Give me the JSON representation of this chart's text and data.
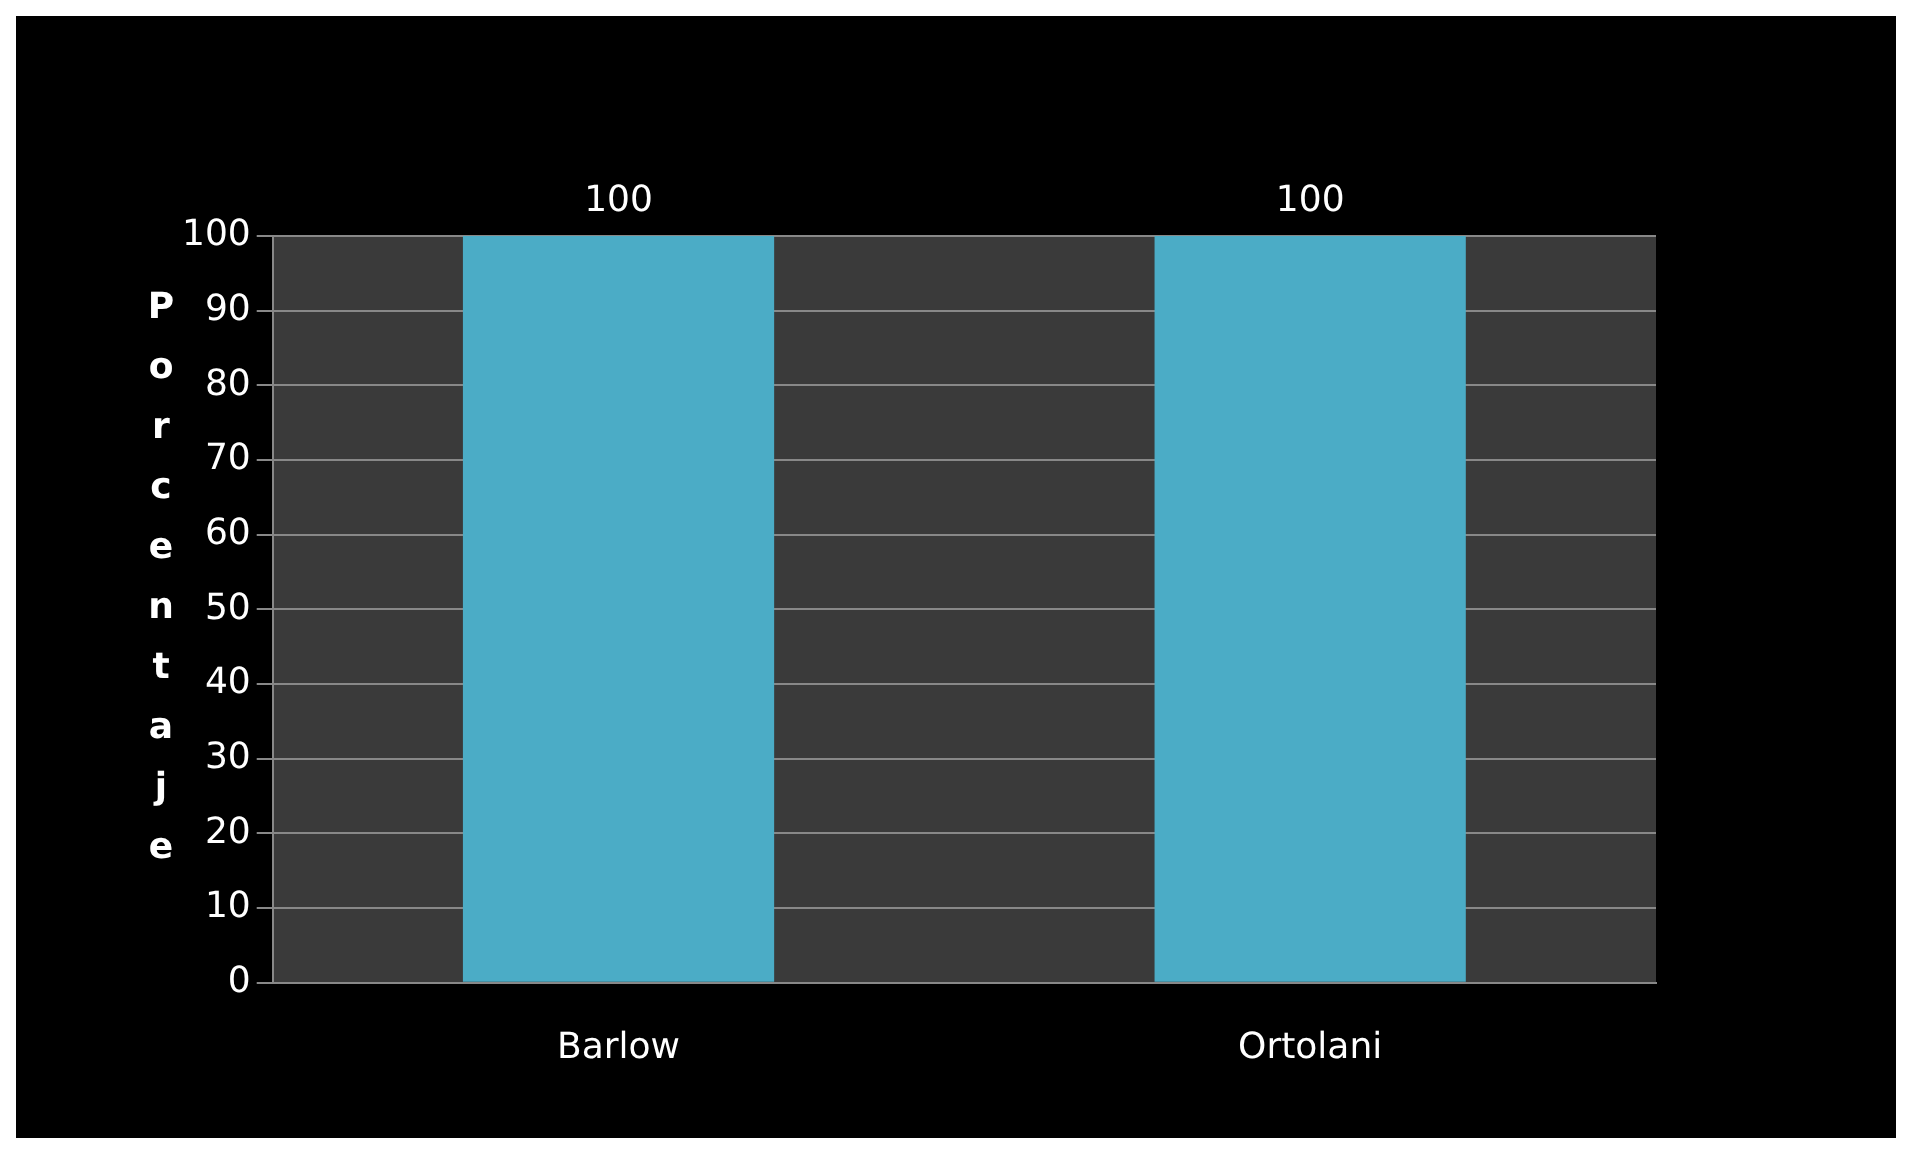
{
  "chart_data": {
    "type": "bar",
    "ylabel": "Porcentaje",
    "categories": [
      "Barlow",
      "Ortolani"
    ],
    "values": [
      100,
      100
    ],
    "color": "#4bacc6",
    "ylim": [
      0,
      100
    ],
    "yticks": [
      0,
      10,
      20,
      30,
      40,
      50,
      60,
      70,
      80,
      90,
      100
    ],
    "grid": "y",
    "data_labels": true
  }
}
